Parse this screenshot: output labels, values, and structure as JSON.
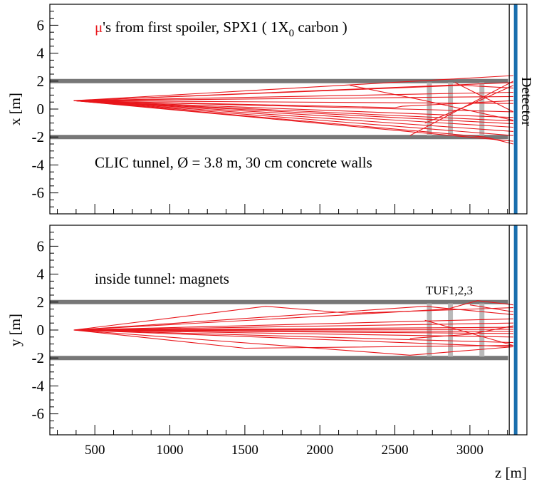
{
  "figure": {
    "xlabel": "z [m]",
    "colors": {
      "tracks": "#e8161b",
      "wall": "#777777",
      "tuf": "#b9b9b9",
      "detector": "#1a6fae",
      "frame": "#000000"
    }
  },
  "chart_data": [
    {
      "type": "line",
      "ylabel": "x [m]",
      "xlim": [
        200,
        3380
      ],
      "ylim": [
        -7.5,
        7.5
      ],
      "x_ticks": [
        500,
        1000,
        1500,
        2000,
        2500,
        3000
      ],
      "x_ticklabels_shown": false,
      "y_ticks": [
        -6,
        -4,
        -2,
        0,
        2,
        4,
        6
      ],
      "annotations": {
        "title_mu": "μ",
        "title_rest": "'s from first spoiler, SPX1 ( 1X",
        "title_sub": "0",
        "title_end": " carbon )",
        "tunnel_note": "CLIC tunnel,  Ø = 3.8 m, 30 cm concrete walls",
        "detector_label": "Detector"
      },
      "walls": [
        2.0,
        -2.0
      ],
      "tuf_z": [
        2730,
        2870,
        3080
      ],
      "tuf_extent": [
        -1.9,
        1.9
      ],
      "detector_z": 3305,
      "source": {
        "z": 360,
        "value": 0.6
      },
      "series": [
        {
          "x": [
            360,
            3290
          ],
          "y": [
            0.6,
            2.4
          ]
        },
        {
          "x": [
            360,
            3290
          ],
          "y": [
            0.6,
            1.9
          ]
        },
        {
          "x": [
            360,
            2950,
            3290
          ],
          "y": [
            0.6,
            1.7,
            1.5
          ]
        },
        {
          "x": [
            360,
            3290
          ],
          "y": [
            0.6,
            1.2
          ]
        },
        {
          "x": [
            360,
            3290
          ],
          "y": [
            0.6,
            0.9
          ]
        },
        {
          "x": [
            360,
            3290
          ],
          "y": [
            0.6,
            0.4
          ]
        },
        {
          "x": [
            360,
            2500,
            2550,
            3290
          ],
          "y": [
            0.6,
            0.1,
            0.2,
            0.6
          ]
        },
        {
          "x": [
            360,
            3290
          ],
          "y": [
            0.6,
            -0.2
          ]
        },
        {
          "x": [
            360,
            3290
          ],
          "y": [
            0.6,
            -0.6
          ]
        },
        {
          "x": [
            360,
            3290
          ],
          "y": [
            0.6,
            -0.85
          ]
        },
        {
          "x": [
            360,
            3290
          ],
          "y": [
            0.6,
            -1.05
          ]
        },
        {
          "x": [
            360,
            3290
          ],
          "y": [
            0.6,
            -1.3
          ]
        },
        {
          "x": [
            360,
            3290
          ],
          "y": [
            0.6,
            -1.6
          ]
        },
        {
          "x": [
            360,
            3290
          ],
          "y": [
            0.6,
            -1.9
          ]
        },
        {
          "x": [
            360,
            3290
          ],
          "y": [
            0.6,
            -2.3
          ]
        },
        {
          "x": [
            360,
            3100,
            3290
          ],
          "y": [
            0.6,
            -2.0,
            -2.5
          ]
        },
        {
          "x": [
            2200,
            2700,
            3290
          ],
          "y": [
            1.7,
            0.6,
            -0.8
          ]
        },
        {
          "x": [
            2600,
            3290
          ],
          "y": [
            -1.9,
            2.0
          ]
        },
        {
          "x": [
            2700,
            3000,
            3290
          ],
          "y": [
            -1.0,
            0.3,
            1.7
          ]
        },
        {
          "x": [
            2900,
            3290
          ],
          "y": [
            1.9,
            -0.2
          ]
        }
      ]
    },
    {
      "type": "line",
      "ylabel": "y [m]",
      "xlim": [
        200,
        3380
      ],
      "ylim": [
        -7.5,
        7.5
      ],
      "x_ticks": [
        500,
        1000,
        1500,
        2000,
        2500,
        3000
      ],
      "x_ticklabels": [
        "500",
        "1000",
        "1500",
        "2000",
        "2500",
        "3000"
      ],
      "y_ticks": [
        -6,
        -4,
        -2,
        0,
        2,
        4,
        6
      ],
      "annotations": {
        "inside_note": "inside tunnel: magnets",
        "tuf_label": "TUF1,2,3"
      },
      "walls": [
        2.0,
        -2.0
      ],
      "tuf_z": [
        2730,
        2870,
        3080
      ],
      "tuf_extent": [
        -1.9,
        1.9
      ],
      "detector_z": 3305,
      "source": {
        "z": 360,
        "value": 0.0
      },
      "series": [
        {
          "x": [
            360,
            1640,
            2200,
            2750,
            3290
          ],
          "y": [
            0.0,
            1.7,
            1.2,
            1.4,
            1.6
          ]
        },
        {
          "x": [
            360,
            2200,
            2850,
            3050,
            3290
          ],
          "y": [
            0.0,
            1.1,
            1.5,
            2.1,
            1.8
          ]
        },
        {
          "x": [
            360,
            2700,
            3290
          ],
          "y": [
            0.0,
            1.7,
            1.1
          ]
        },
        {
          "x": [
            360,
            3290
          ],
          "y": [
            0.0,
            0.8
          ]
        },
        {
          "x": [
            360,
            3290
          ],
          "y": [
            0.0,
            0.5
          ]
        },
        {
          "x": [
            360,
            3290
          ],
          "y": [
            0.0,
            0.2
          ]
        },
        {
          "x": [
            360,
            3290
          ],
          "y": [
            0.0,
            0.05
          ]
        },
        {
          "x": [
            360,
            3290
          ],
          "y": [
            0.0,
            -0.1
          ]
        },
        {
          "x": [
            360,
            3290
          ],
          "y": [
            0.0,
            -0.25
          ]
        },
        {
          "x": [
            360,
            3290
          ],
          "y": [
            0.0,
            -0.5
          ]
        },
        {
          "x": [
            360,
            3290
          ],
          "y": [
            0.0,
            -0.9
          ]
        },
        {
          "x": [
            360,
            3290
          ],
          "y": [
            0.0,
            -1.2
          ]
        },
        {
          "x": [
            360,
            2600,
            3290
          ],
          "y": [
            0.0,
            -1.8,
            -1.2
          ]
        },
        {
          "x": [
            360,
            1500,
            3290
          ],
          "y": [
            0.0,
            -1.3,
            -1.1
          ]
        },
        {
          "x": [
            2700,
            3290
          ],
          "y": [
            0.7,
            -1.1
          ]
        },
        {
          "x": [
            2600,
            3000,
            3290
          ],
          "y": [
            -0.6,
            -0.3,
            0.3
          ]
        },
        {
          "x": [
            3000,
            3290
          ],
          "y": [
            1.8,
            1.3
          ]
        }
      ]
    }
  ]
}
